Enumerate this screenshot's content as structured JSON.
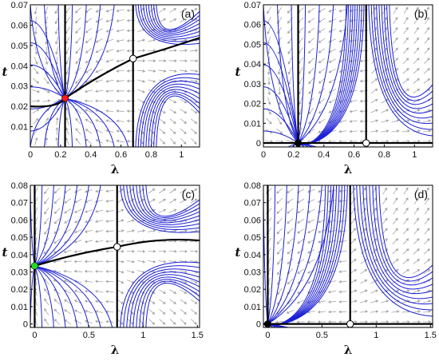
{
  "figure": {
    "colors": {
      "trajectory": "#1c1fd6",
      "separatrix": "#000000",
      "arrow": "#a6a6a6",
      "stable_node_a": "#ff1a1a",
      "stable_node_c": "#22dd22",
      "node_b": "#000000",
      "saddle_fill": "#ffffff"
    },
    "panels": [
      {
        "label": "(a)",
        "xlabel": "λ",
        "ylabel": "t",
        "xlim": [
          0,
          1.12
        ],
        "ylim": [
          0,
          0.07
        ],
        "xticks": [
          0,
          0.2,
          0.4,
          0.6,
          0.8,
          1
        ],
        "xtick_labels": [
          "0",
          "0.2",
          "0.4",
          "0.6",
          "0.8",
          "1"
        ],
        "yticks": [
          0.01,
          0.02,
          0.03,
          0.04,
          0.05,
          0.06,
          0.07
        ],
        "ytick_labels": [
          "0.01",
          "0.02",
          "0.03",
          "0.04",
          "0.05",
          "0.06",
          "0.07"
        ],
        "stable_point": [
          0.23,
          0.024
        ],
        "stable_color": "stable_node_a",
        "saddle_point": [
          0.68,
          0.0435
        ]
      },
      {
        "label": "(b)",
        "xlabel": "λ",
        "ylabel": "t",
        "xlim": [
          0,
          1.12
        ],
        "ylim": [
          -0.002,
          0.07
        ],
        "xticks": [
          0,
          0.2,
          0.4,
          0.6,
          0.8,
          1
        ],
        "xtick_labels": [
          "0",
          "0.2",
          "0.4",
          "0.6",
          "0.8",
          "1"
        ],
        "yticks": [
          0,
          0.01,
          0.02,
          0.03,
          0.04,
          0.05,
          0.06,
          0.07
        ],
        "ytick_labels": [
          "0",
          "0.01",
          "0.02",
          "0.03",
          "0.04",
          "0.05",
          "0.06",
          "0.07"
        ],
        "stable_point": [
          0.23,
          0
        ],
        "stable_color": "node_b",
        "saddle_point": [
          0.68,
          0
        ]
      },
      {
        "label": "(c)",
        "xlabel": "λ",
        "ylabel": "t",
        "xlim": [
          -0.04,
          1.52
        ],
        "ylim": [
          -0.002,
          0.08
        ],
        "xticks": [
          0,
          0.5,
          1,
          1.5
        ],
        "xtick_labels": [
          "0",
          "0.5",
          "1",
          "1.5"
        ],
        "yticks": [
          0,
          0.01,
          0.02,
          0.03,
          0.04,
          0.05,
          0.06,
          0.07,
          0.08
        ],
        "ytick_labels": [
          "0",
          "0.01",
          "0.02",
          "0.03",
          "0.04",
          "0.05",
          "0.06",
          "0.07",
          "0.08"
        ],
        "stable_point": [
          0,
          0.0335
        ],
        "stable_color": "stable_node_c",
        "saddle_point": [
          0.76,
          0.0445
        ]
      },
      {
        "label": "(d)",
        "xlabel": "λ",
        "ylabel": "t",
        "xlim": [
          -0.04,
          1.52
        ],
        "ylim": [
          -0.002,
          0.08
        ],
        "xticks": [
          0,
          0.5,
          1,
          1.5
        ],
        "xtick_labels": [
          "0",
          "0.5",
          "1",
          "1.5"
        ],
        "yticks": [
          0,
          0.01,
          0.02,
          0.03,
          0.04,
          0.05,
          0.06,
          0.07,
          0.08
        ],
        "ytick_labels": [
          "0",
          "0.01",
          "0.02",
          "0.03",
          "0.04",
          "0.05",
          "0.06",
          "0.07",
          "0.08"
        ],
        "stable_point": [
          0,
          0
        ],
        "stable_color": "node_b",
        "saddle_point": [
          0.76,
          0
        ]
      }
    ]
  }
}
